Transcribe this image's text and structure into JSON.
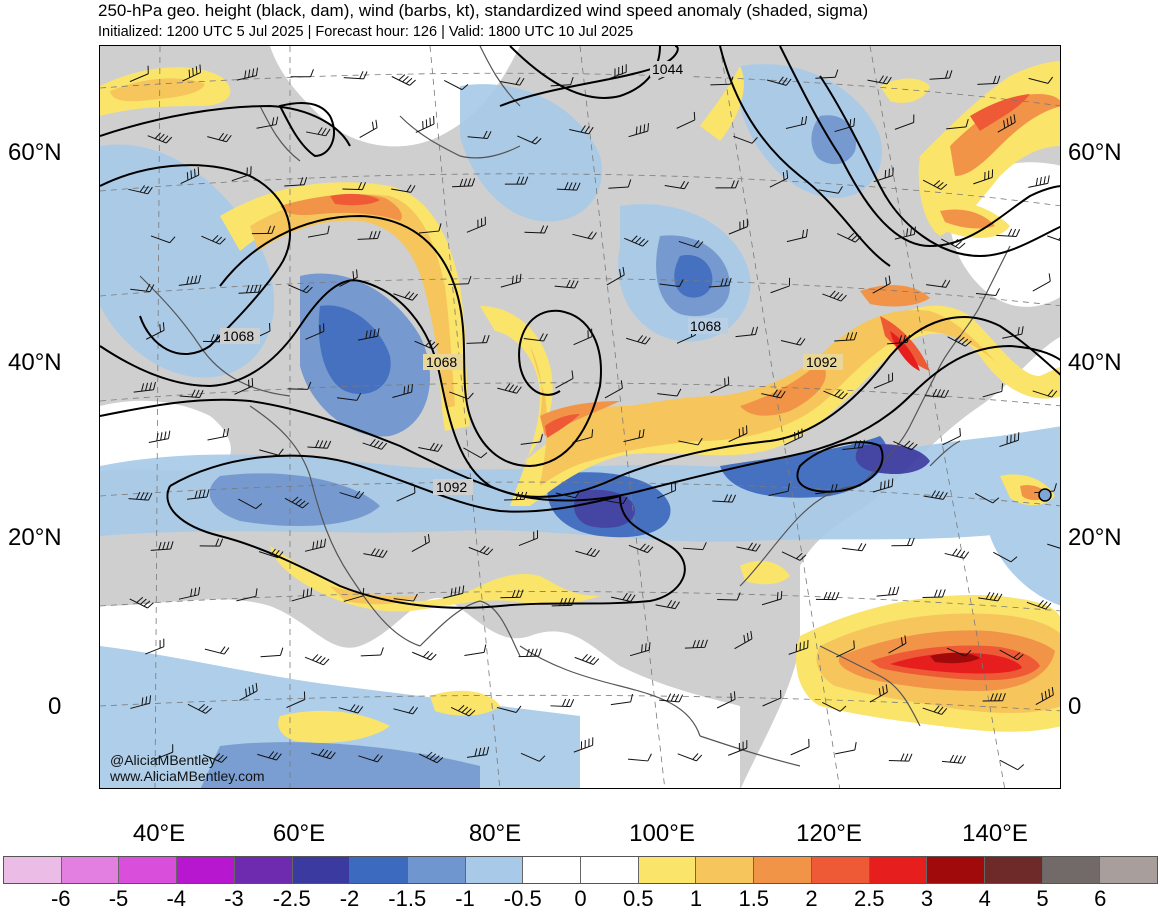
{
  "header": {
    "title": "250-hPa geo. height (black, dam), wind (barbs, kt), standardized wind speed anomaly (shaded, sigma)",
    "subtitle": "Initialized: 1200 UTC 5 Jul 2025 | Forecast hour: 126 | Valid: 1800 UTC 10 Jul 2025"
  },
  "map": {
    "lat_labels": [
      "60°N",
      "40°N",
      "20°N",
      "0"
    ],
    "lon_labels": [
      "40°E",
      "60°E",
      "80°E",
      "100°E",
      "120°E",
      "140°E"
    ],
    "contour_labels": [
      "1044",
      "1068",
      "1068",
      "1068",
      "1092",
      "1092"
    ],
    "colors": {
      "land": "#c9c9c9",
      "ocean": "#ffffff",
      "contour": "#000000",
      "coast": "#555555"
    }
  },
  "credits": {
    "handle": "@AliciaMBentley",
    "site": "www.AliciaMBentley.com"
  },
  "colorbar": {
    "colors": [
      "#ebbde6",
      "#e37fe1",
      "#d94fdb",
      "#b717cf",
      "#6f2bb0",
      "#3a3aa0",
      "#3b6abf",
      "#6f96cf",
      "#a8cae8",
      "#ffffff",
      "#ffffff",
      "#fbe46a",
      "#f6c65c",
      "#f29448",
      "#ee5a36",
      "#e61e1e",
      "#a00a0a",
      "#6e2a28",
      "#716a68",
      "#a89e9c"
    ],
    "labels": [
      "-6",
      "-5",
      "-4",
      "-3",
      "-2.5",
      "-2",
      "-1.5",
      "-1",
      "-0.5",
      "0",
      "0.5",
      "1",
      "1.5",
      "2",
      "2.5",
      "3",
      "4",
      "5",
      "6"
    ]
  }
}
